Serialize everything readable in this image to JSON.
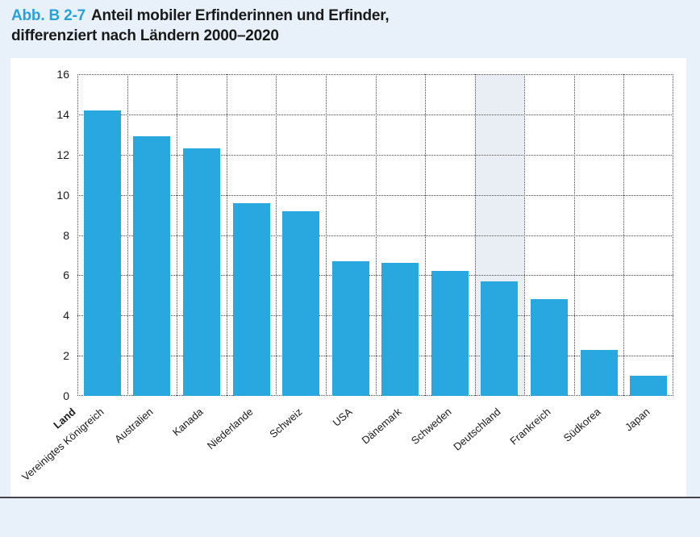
{
  "figure": {
    "label": "Abb. B 2-7",
    "title_line1": "Anteil mobiler Erfinderinnen und Erfinder,",
    "title_line2": "differenziert nach Ländern 2000–2020"
  },
  "chart_data": {
    "type": "bar",
    "title": "Anteil mobiler Erfinderinnen und Erfinder, differenziert nach Ländern 2000–2020",
    "xlabel": "Land",
    "ylabel": "",
    "categories": [
      "Vereinigtes Königreich",
      "Australien",
      "Kanada",
      "Niederlande",
      "Schweiz",
      "USA",
      "Dänemark",
      "Schweden",
      "Deutschland",
      "Frankreich",
      "Südkorea",
      "Japan"
    ],
    "values": [
      14.2,
      12.9,
      12.3,
      9.6,
      9.2,
      6.7,
      6.6,
      6.2,
      5.7,
      4.8,
      2.3,
      1.0
    ],
    "ylim": [
      0,
      16
    ],
    "ytick_step": 2,
    "yticks": [
      0,
      2,
      4,
      6,
      8,
      10,
      12,
      14,
      16
    ],
    "grid": "dotted, horizontal and vertical",
    "legend": "none",
    "highlight_category": "Deutschland",
    "bar_color": "#29a8e0",
    "highlight_band_color": "#e8eef4"
  },
  "colors": {
    "page_background": "#e8f1f9",
    "panel_background": "#ffffff",
    "accent_blue": "#2aa0d9",
    "grid": "#4d4d4d",
    "text": "#1a1a1a"
  }
}
